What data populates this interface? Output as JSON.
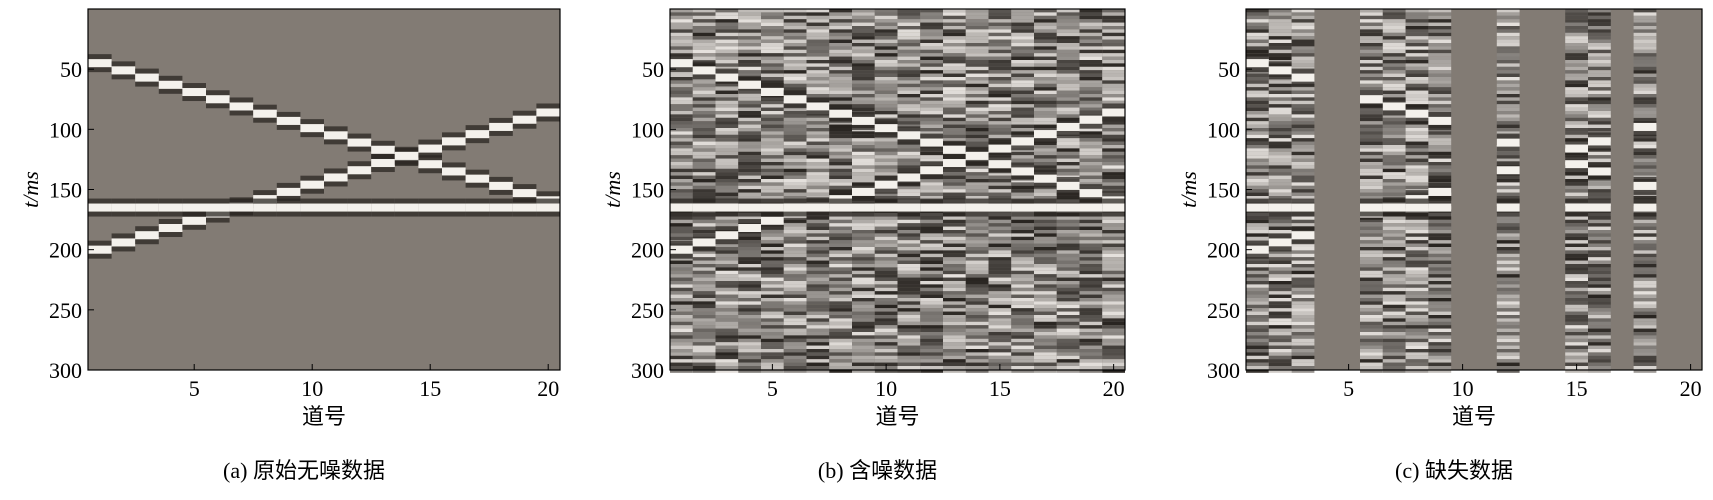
{
  "chart_data": [
    {
      "type": "seismic",
      "caption": "(a) 原始无噪数据",
      "xlabel": "道号",
      "ylabel": "t/ms",
      "xlim": [
        0.5,
        20.5
      ],
      "xticks": [
        5,
        10,
        15,
        20
      ],
      "ylim": [
        0,
        300
      ],
      "yticks": [
        50,
        100,
        150,
        200,
        250,
        300
      ],
      "y_reversed": true,
      "color": "#827b74",
      "noise": false,
      "series": [
        {
          "values": [
            45,
            51,
            57,
            63,
            69,
            75,
            81,
            87,
            93,
            99,
            105,
            111,
            117,
            123,
            129,
            135,
            141,
            147,
            153,
            159
          ]
        },
        {
          "values": [
            200,
            194,
            188,
            182,
            176,
            170,
            164,
            158,
            152,
            146,
            140,
            134,
            128,
            122,
            116,
            110,
            104,
            98,
            92,
            86
          ]
        },
        {
          "values": [
            165,
            165,
            165,
            165,
            165,
            165,
            165,
            165,
            165,
            165,
            165,
            165,
            165,
            165,
            165,
            165,
            165,
            165,
            165,
            165
          ]
        }
      ]
    },
    {
      "type": "seismic",
      "caption": "(b) 含噪数据",
      "xlabel": "道号",
      "ylabel": "t/ms",
      "xlim": [
        0.5,
        20.5
      ],
      "xticks": [
        5,
        10,
        15,
        20
      ],
      "ylim": [
        0,
        300
      ],
      "yticks": [
        50,
        100,
        150,
        200,
        250,
        300
      ],
      "y_reversed": true,
      "color": "#827b74",
      "noise": true,
      "series": [
        {
          "values": [
            45,
            51,
            57,
            63,
            69,
            75,
            81,
            87,
            93,
            99,
            105,
            111,
            117,
            123,
            129,
            135,
            141,
            147,
            153,
            159
          ]
        },
        {
          "values": [
            200,
            194,
            188,
            182,
            176,
            170,
            164,
            158,
            152,
            146,
            140,
            134,
            128,
            122,
            116,
            110,
            104,
            98,
            92,
            86
          ]
        },
        {
          "values": [
            165,
            165,
            165,
            165,
            165,
            165,
            165,
            165,
            165,
            165,
            165,
            165,
            165,
            165,
            165,
            165,
            165,
            165,
            165,
            165
          ]
        }
      ]
    },
    {
      "type": "seismic",
      "caption": "(c) 缺失数据",
      "xlabel": "道号",
      "ylabel": "t/ms",
      "xlim": [
        0.5,
        20.5
      ],
      "xticks": [
        5,
        10,
        15,
        20
      ],
      "ylim": [
        0,
        300
      ],
      "yticks": [
        50,
        100,
        150,
        200,
        250,
        300
      ],
      "y_reversed": true,
      "color": "#827b74",
      "noise": true,
      "series": [
        {
          "values": [
            45,
            51,
            57,
            null,
            null,
            75,
            81,
            87,
            93,
            null,
            null,
            111,
            null,
            null,
            129,
            135,
            null,
            147,
            null,
            null
          ]
        },
        {
          "values": [
            200,
            194,
            188,
            null,
            null,
            170,
            164,
            158,
            152,
            null,
            null,
            134,
            null,
            null,
            116,
            110,
            null,
            98,
            null,
            null
          ]
        },
        {
          "values": [
            165,
            165,
            165,
            null,
            null,
            165,
            165,
            165,
            165,
            null,
            null,
            165,
            null,
            null,
            165,
            165,
            null,
            165,
            null,
            null
          ]
        }
      ]
    }
  ]
}
